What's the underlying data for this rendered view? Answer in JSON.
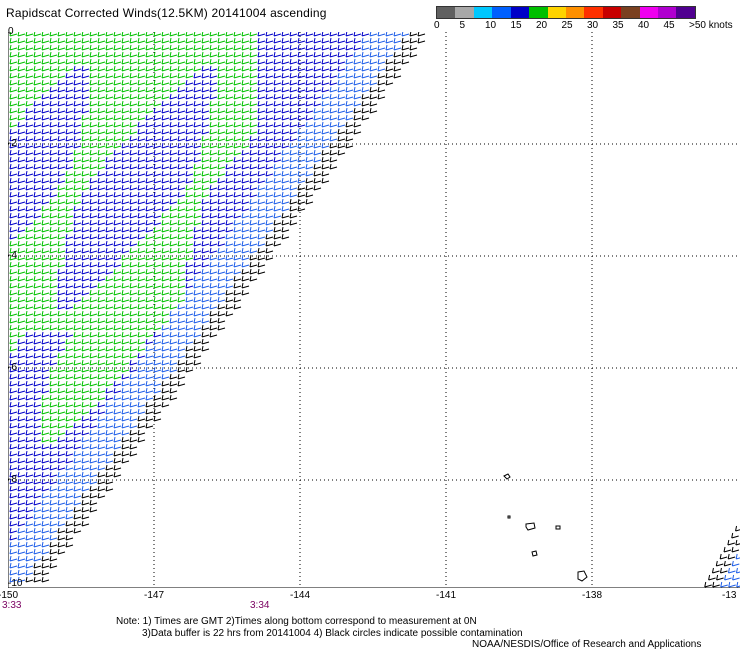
{
  "title": "Rapidscat Corrected Winds(12.5KM) 20141004 ascending",
  "legend": {
    "labels": [
      "0",
      "5",
      "10",
      "15",
      "20",
      "25",
      "30",
      "35",
      "40",
      "45",
      ">50 knots"
    ],
    "colors": [
      "#606060",
      "#a8a8a8",
      "#00c8ff",
      "#0060ff",
      "#0000c8",
      "#00c000",
      "#ffd400",
      "#ff9000",
      "#ff3000",
      "#c80000",
      "#7a4020",
      "#f000f0",
      "#b000d0",
      "#500090"
    ]
  },
  "axes": {
    "lon_labels": [
      "-150",
      "-147",
      "-144",
      "-141",
      "-138",
      "-13"
    ],
    "lat_labels": [
      "0",
      "-2",
      "-4",
      "-6",
      "-8",
      "-10"
    ]
  },
  "times": [
    "3:33",
    "3:34"
  ],
  "notes": {
    "line1": "Note: 1) Times are GMT 2)Times along bottom correspond to measurement at 0N",
    "line2": "3)Data buffer is 22 hrs from 20141004 4) Black circles indicate possible contamination",
    "credit": "NOAA/NESDIS/Office of Research and Applications"
  },
  "wind_colors": {
    "low": "#000000",
    "mid": "#0000c8",
    "mid2": "#1e5ee8",
    "high": "#00c000"
  }
}
